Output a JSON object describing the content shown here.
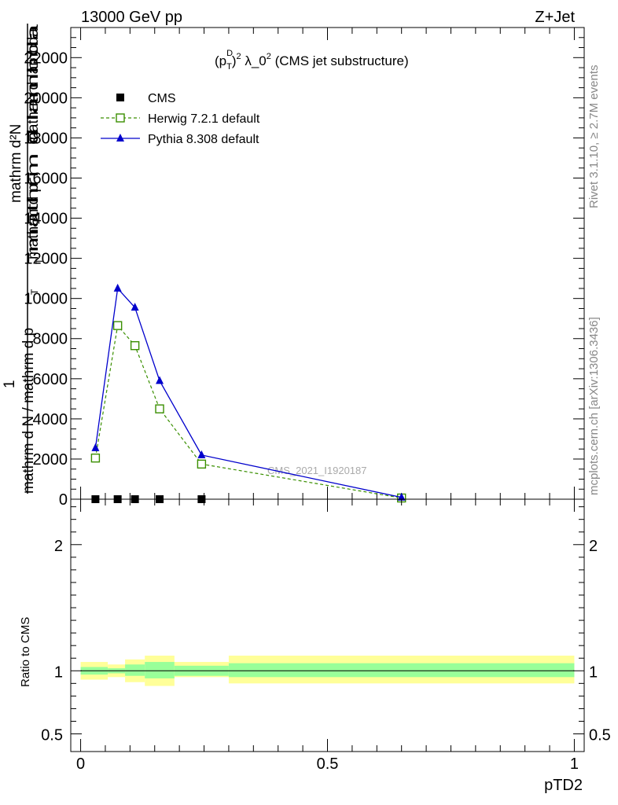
{
  "header": {
    "left": "13000 GeV pp",
    "right": "Z+Jet"
  },
  "side_labels": {
    "rivet": "Rivet 3.1.10, ≥ 2.7M events",
    "mcplots": "mcplots.cern.ch [arXiv:1306.3436]"
  },
  "watermark": "CMS_2021_I1920187",
  "colors": {
    "cms": "#000000",
    "herwig": "#3a8f00",
    "pythia": "#0000cc",
    "band_outer": "#ffff99",
    "band_inner": "#99ff99"
  },
  "chart_data": [
    {
      "type": "line",
      "title_parts": {
        "p": "(p",
        "sup1": "D",
        "sub1": "T",
        "close": ")",
        "sup2": "2",
        "rest": " λ_0",
        "sup3": "2",
        "tail": " (CMS jet substructure)"
      },
      "ylabel_numerator": "mathrm d²N",
      "ylabel_fraction_top": "1",
      "ylabel_fraction_bottom": "mathrm d N / mathrm d p",
      "ylabel_sub": "T",
      "ylabel_main": "mathrm d p",
      "ylabel_main_sub": "T",
      "ylabel_tail": " mathrm d lambda",
      "ylabel_garble": "mathrm d lambda",
      "xlim": [
        -0.02,
        1.02
      ],
      "ylim": [
        0,
        23500
      ],
      "y_ticks": [
        0,
        2000,
        4000,
        6000,
        8000,
        10000,
        12000,
        14000,
        16000,
        18000,
        20000,
        22000
      ],
      "y_tick_labels": [
        "0",
        "2000",
        "4000",
        "6000",
        "8000",
        "10000",
        "12000",
        "14000",
        "16000",
        "18000",
        "20000",
        "22000"
      ],
      "legend": {
        "cms": "CMS",
        "herwig": "Herwig 7.2.1 default",
        "pythia": "Pythia 8.308 default"
      },
      "series": [
        {
          "name": "CMS",
          "x": [
            0.03,
            0.075,
            0.11,
            0.16,
            0.245
          ],
          "y": [
            0,
            0,
            0,
            0,
            0
          ]
        },
        {
          "name": "Herwig 7.2.1 default",
          "x": [
            0.03,
            0.075,
            0.11,
            0.16,
            0.245,
            0.65
          ],
          "y": [
            2050,
            8650,
            7650,
            4500,
            1750,
            60
          ]
        },
        {
          "name": "Pythia 8.308 default",
          "x": [
            0.03,
            0.075,
            0.11,
            0.16,
            0.245,
            0.65
          ],
          "y": [
            2550,
            10500,
            9550,
            5900,
            2200,
            90
          ]
        }
      ]
    },
    {
      "type": "area",
      "ylabel": "Ratio to CMS",
      "xlabel": "pTD2",
      "xlim": [
        -0.02,
        1.02
      ],
      "ylim": [
        0.36,
        2.36
      ],
      "y_ticks": [
        0.5,
        1,
        2
      ],
      "y_tick_labels": [
        "0.5",
        "1",
        "2"
      ],
      "x_ticks": [
        0,
        0.5,
        1
      ],
      "x_tick_labels": [
        "0",
        "0.5",
        "1"
      ],
      "bands": {
        "edges": [
          0,
          0.055,
          0.09,
          0.13,
          0.19,
          0.3,
          1.0
        ],
        "outer_low": [
          0.93,
          0.95,
          0.91,
          0.88,
          0.95,
          0.9
        ],
        "outer_high": [
          1.07,
          1.05,
          1.09,
          1.12,
          1.07,
          1.12
        ],
        "inner_low": [
          0.97,
          0.98,
          0.96,
          0.94,
          0.96,
          0.95
        ],
        "inner_high": [
          1.03,
          1.02,
          1.05,
          1.07,
          1.04,
          1.06
        ]
      },
      "reference": 1
    }
  ]
}
